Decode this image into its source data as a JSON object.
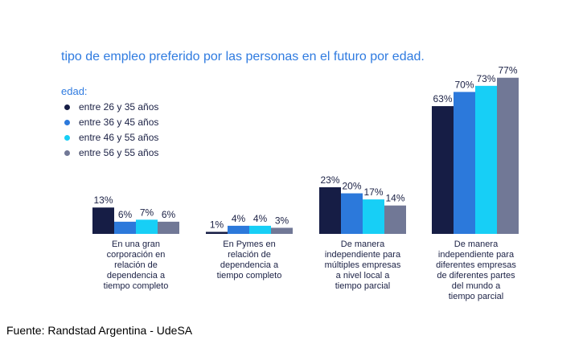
{
  "chart_data": {
    "type": "bar",
    "title": "tipo de empleo preferido por las personas en el futuro por edad.",
    "legend_title": "edad:",
    "legend_position": "top-left",
    "categories": [
      "En una gran corporación en relación de dependencia a tiempo completo",
      "En Pymes en relación de dependencia a tiempo completo",
      "De manera independiente para múltiples empresas a nivel local a tiempo parcial",
      "De manera independiente para diferentes empresas de diferentes partes del mundo a tiempo parcial"
    ],
    "category_lines": [
      [
        "En una gran",
        "corporación en",
        "relación de",
        "dependencia a",
        "tiempo completo"
      ],
      [
        "En Pymes en",
        "relación de",
        "dependencia a",
        "tiempo completo"
      ],
      [
        "De manera",
        "independiente para",
        "múltiples empresas",
        "a nivel local a",
        "tiempo parcial"
      ],
      [
        "De manera",
        "independiente para",
        "diferentes empresas",
        "de diferentes partes",
        "del mundo a",
        "tiempo parcial"
      ]
    ],
    "series": [
      {
        "name": "entre 26 y 35 años",
        "values": [
          13,
          1,
          23,
          63
        ],
        "labels": [
          "13%",
          "1%",
          "23%",
          "63%"
        ],
        "color": "#161d45"
      },
      {
        "name": "entre 36 y 45 años",
        "values": [
          6,
          4,
          20,
          70
        ],
        "labels": [
          "6%",
          "4%",
          "20%",
          "70%"
        ],
        "color": "#2c79db"
      },
      {
        "name": "entre 46 y 55 años",
        "values": [
          7,
          4,
          17,
          73
        ],
        "labels": [
          "7%",
          "4%",
          "17%",
          "73%"
        ],
        "color": "#17cff6"
      },
      {
        "name": "entre 56 y 55 años",
        "values": [
          6,
          3,
          14,
          77
        ],
        "labels": [
          "6%",
          "3%",
          "14%",
          "77%"
        ],
        "color": "#717896"
      }
    ],
    "ylim": [
      0,
      77
    ],
    "grid": false
  },
  "source": "Fuente: Randstad Argentina - UdeSA"
}
